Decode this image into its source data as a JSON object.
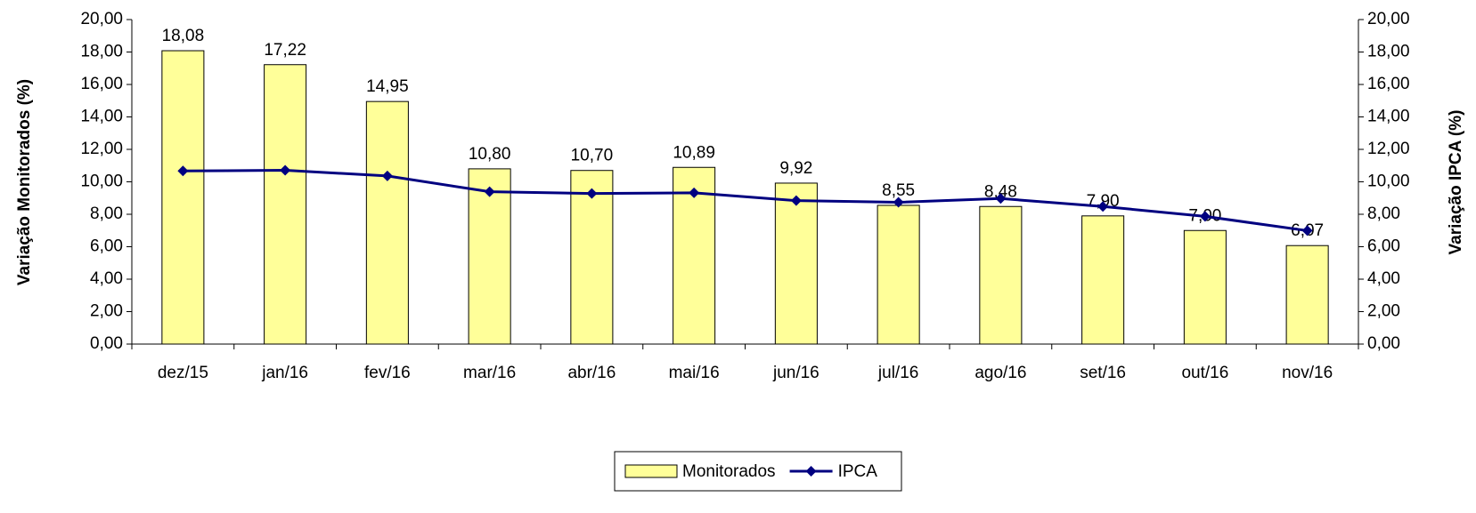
{
  "chart_data": {
    "type": "bar-line",
    "y_label": "Variação Monitorados (%)",
    "y2_label": "Variação IPCA (%)",
    "categories": [
      "dez/15",
      "jan/16",
      "fev/16",
      "mar/16",
      "abr/16",
      "mai/16",
      "jun/16",
      "jul/16",
      "ago/16",
      "set/16",
      "out/16",
      "nov/16"
    ],
    "series": [
      {
        "name": "Monitorados",
        "type": "bar",
        "color": "#ffff99",
        "values": [
          18.08,
          17.22,
          14.95,
          10.8,
          10.7,
          10.89,
          9.92,
          8.55,
          8.48,
          7.9,
          7.0,
          6.07
        ],
        "value_labels": [
          "18,08",
          "17,22",
          "14,95",
          "10,80",
          "10,70",
          "10,89",
          "9,92",
          "8,55",
          "8,48",
          "7,90",
          "7,00",
          "6,07"
        ]
      },
      {
        "name": "IPCA",
        "type": "line",
        "axis": "y2",
        "color": "#000080",
        "values": [
          10.67,
          10.71,
          10.36,
          9.39,
          9.28,
          9.32,
          8.84,
          8.74,
          8.97,
          8.48,
          7.87,
          6.99
        ]
      }
    ],
    "ylim": [
      0,
      20
    ],
    "yticks": [
      {
        "value": 0,
        "label": "0,00"
      },
      {
        "value": 2,
        "label": "2,00"
      },
      {
        "value": 4,
        "label": "4,00"
      },
      {
        "value": 6,
        "label": "6,00"
      },
      {
        "value": 8,
        "label": "8,00"
      },
      {
        "value": 10,
        "label": "10,00"
      },
      {
        "value": 12,
        "label": "12,00"
      },
      {
        "value": 14,
        "label": "14,00"
      },
      {
        "value": 16,
        "label": "16,00"
      },
      {
        "value": 18,
        "label": "18,00"
      },
      {
        "value": 20,
        "label": "20,00"
      }
    ],
    "y2lim": [
      0,
      20
    ],
    "y2ticks": [
      {
        "value": 0,
        "label": "0,00"
      },
      {
        "value": 2,
        "label": "2,00"
      },
      {
        "value": 4,
        "label": "4,00"
      },
      {
        "value": 6,
        "label": "6,00"
      },
      {
        "value": 8,
        "label": "8,00"
      },
      {
        "value": 10,
        "label": "10,00"
      },
      {
        "value": 12,
        "label": "12,00"
      },
      {
        "value": 14,
        "label": "14,00"
      },
      {
        "value": 16,
        "label": "16,00"
      },
      {
        "value": 18,
        "label": "18,00"
      },
      {
        "value": 20,
        "label": "20,00"
      }
    ],
    "legend": "bottom"
  }
}
